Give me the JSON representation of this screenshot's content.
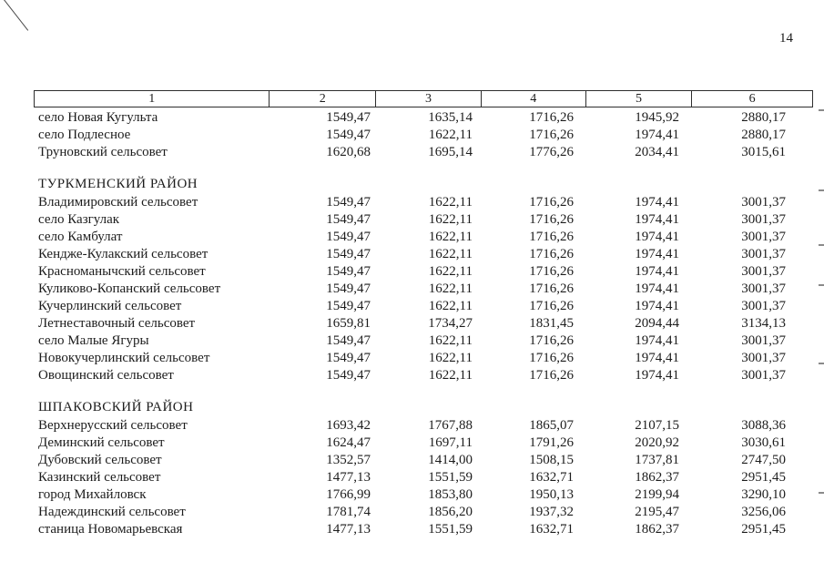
{
  "page": {
    "number": "14"
  },
  "table": {
    "header": [
      "1",
      "2",
      "3",
      "4",
      "5",
      "6"
    ],
    "sections": [
      {
        "title": "",
        "rows": [
          [
            "село Новая Кугульта",
            "1549,47",
            "1635,14",
            "1716,26",
            "1945,92",
            "2880,17"
          ],
          [
            "село Подлесное",
            "1549,47",
            "1622,11",
            "1716,26",
            "1974,41",
            "2880,17"
          ],
          [
            "Труновский сельсовет",
            "1620,68",
            "1695,14",
            "1776,26",
            "2034,41",
            "3015,61"
          ]
        ]
      },
      {
        "title": "ТУРКМЕНСКИЙ РАЙОН",
        "rows": [
          [
            "Владимировский сельсовет",
            "1549,47",
            "1622,11",
            "1716,26",
            "1974,41",
            "3001,37"
          ],
          [
            "село Казгулак",
            "1549,47",
            "1622,11",
            "1716,26",
            "1974,41",
            "3001,37"
          ],
          [
            "село Камбулат",
            "1549,47",
            "1622,11",
            "1716,26",
            "1974,41",
            "3001,37"
          ],
          [
            "Кендже-Кулакский сельсовет",
            "1549,47",
            "1622,11",
            "1716,26",
            "1974,41",
            "3001,37"
          ],
          [
            "Красноманычский сельсовет",
            "1549,47",
            "1622,11",
            "1716,26",
            "1974,41",
            "3001,37"
          ],
          [
            "Куликово-Копанский сельсовет",
            "1549,47",
            "1622,11",
            "1716,26",
            "1974,41",
            "3001,37"
          ],
          [
            "Кучерлинский сельсовет",
            "1549,47",
            "1622,11",
            "1716,26",
            "1974,41",
            "3001,37"
          ],
          [
            "Летнеставочный сельсовет",
            "1659,81",
            "1734,27",
            "1831,45",
            "2094,44",
            "3134,13"
          ],
          [
            "село Малые Ягуры",
            "1549,47",
            "1622,11",
            "1716,26",
            "1974,41",
            "3001,37"
          ],
          [
            "Новокучерлинский сельсовет",
            "1549,47",
            "1622,11",
            "1716,26",
            "1974,41",
            "3001,37"
          ],
          [
            "Овощинский сельсовет",
            "1549,47",
            "1622,11",
            "1716,26",
            "1974,41",
            "3001,37"
          ]
        ]
      },
      {
        "title": "ШПАКОВСКИЙ РАЙОН",
        "rows": [
          [
            "Верхнерусский сельсовет",
            "1693,42",
            "1767,88",
            "1865,07",
            "2107,15",
            "3088,36"
          ],
          [
            "Деминский сельсовет",
            "1624,47",
            "1697,11",
            "1791,26",
            "2020,92",
            "3030,61"
          ],
          [
            "Дубовский сельсовет",
            "1352,57",
            "1414,00",
            "1508,15",
            "1737,81",
            "2747,50"
          ],
          [
            "Казинский сельсовет",
            "1477,13",
            "1551,59",
            "1632,71",
            "1862,37",
            "2951,45"
          ],
          [
            "город Михайловск",
            "1766,99",
            "1853,80",
            "1950,13",
            "2199,94",
            "3290,10"
          ],
          [
            "Надеждинский сельсовет",
            "1781,74",
            "1856,20",
            "1937,32",
            "2195,47",
            "3256,06"
          ],
          [
            "станица Новомарьевская",
            "1477,13",
            "1551,59",
            "1632,71",
            "1862,37",
            "2951,45"
          ]
        ]
      }
    ]
  }
}
